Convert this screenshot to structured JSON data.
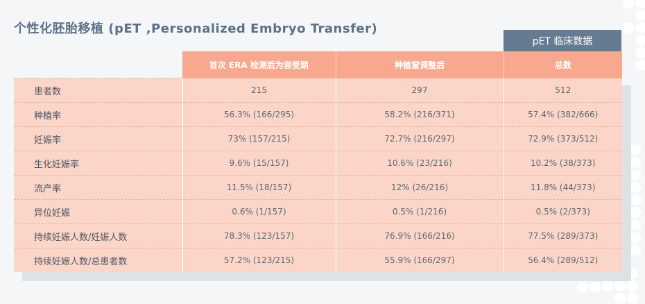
{
  "title": "个性化胚胎移植 (pET ,Personalized Embryo Transfer)",
  "badge": "pET 临床数据",
  "columns": [
    "首次 ERA 检测后为容受期",
    "种植窗调整后",
    "总数"
  ],
  "rows": [
    {
      "label": "患者数",
      "values": [
        "215",
        "297",
        "512"
      ]
    },
    {
      "label": "种植率",
      "values": [
        "56.3% (166/295)",
        "58.2% (216/371)",
        "57.4% (382/666)"
      ]
    },
    {
      "label": "妊娠率",
      "values": [
        "73% (157/215)",
        "72.7% (216/297)",
        "72.9% (373/512)"
      ]
    },
    {
      "label": "生化妊娠率",
      "values": [
        "9.6% (15/157)",
        "10.6% (23/216)",
        "10.2% (38/373)"
      ]
    },
    {
      "label": "流产率",
      "values": [
        "11.5% (18/157)",
        "12% (26/216)",
        "11.8% (44/373)"
      ]
    },
    {
      "label": "异位妊娠",
      "values": [
        "0.6% (1/157)",
        "0.5% (1/216)",
        "0.5% (2/373)"
      ]
    },
    {
      "label": "持续妊娠人数/妊娠人数",
      "values": [
        "78.3% (123/157)",
        "76.9% (166/216)",
        "77.5% (289/373)"
      ]
    },
    {
      "label": "持续妊娠人数/总患者数",
      "values": [
        "57.2% (123/215)",
        "55.9% (166/297)",
        "56.4% (289/512)"
      ]
    }
  ],
  "colors": {
    "title": "#5e7189",
    "badge_bg": "#667b92",
    "header_bg": "#f7a88f",
    "cell_bg": "#fbd6c8",
    "shadow": "#dfe2e5"
  }
}
